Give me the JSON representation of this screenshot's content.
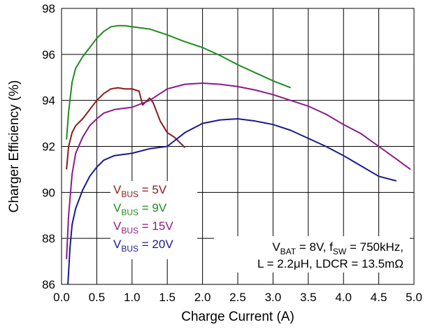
{
  "chart_data": {
    "type": "line",
    "title_visible": "",
    "xlabel": "Charge Current (A)",
    "ylabel": "Charger Efficiency (%)",
    "xlim": [
      0,
      5
    ],
    "ylim": [
      86,
      98
    ],
    "x_ticks": [
      "0.0",
      "0.5",
      "1.0",
      "1.5",
      "2.0",
      "2.5",
      "3.0",
      "3.5",
      "4.0",
      "4.5",
      "5.0"
    ],
    "y_ticks": [
      "86",
      "88",
      "90",
      "92",
      "94",
      "96",
      "98"
    ],
    "grid": true,
    "legend_position": "bottom-left",
    "series": [
      {
        "name_prefix": "V",
        "name_sub": "BUS",
        "name_suffix": " = 5V",
        "color": "#8b1a1a",
        "points": [
          [
            0.07,
            91.0
          ],
          [
            0.1,
            92.0
          ],
          [
            0.15,
            92.6
          ],
          [
            0.2,
            92.9
          ],
          [
            0.3,
            93.2
          ],
          [
            0.4,
            93.6
          ],
          [
            0.5,
            94.0
          ],
          [
            0.6,
            94.3
          ],
          [
            0.7,
            94.5
          ],
          [
            0.8,
            94.55
          ],
          [
            0.9,
            94.5
          ],
          [
            1.0,
            94.5
          ],
          [
            1.1,
            94.4
          ],
          [
            1.15,
            93.8
          ],
          [
            1.25,
            94.1
          ],
          [
            1.3,
            93.9
          ],
          [
            1.4,
            93.1
          ],
          [
            1.5,
            92.6
          ],
          [
            1.6,
            92.4
          ],
          [
            1.7,
            92.1
          ],
          [
            1.75,
            91.95
          ]
        ]
      },
      {
        "name_prefix": "V",
        "name_sub": "BUS",
        "name_suffix": " = 9V",
        "color": "#1e8c1e",
        "points": [
          [
            0.07,
            92.3
          ],
          [
            0.1,
            93.5
          ],
          [
            0.15,
            94.8
          ],
          [
            0.2,
            95.4
          ],
          [
            0.3,
            95.9
          ],
          [
            0.4,
            96.3
          ],
          [
            0.5,
            96.7
          ],
          [
            0.6,
            97.0
          ],
          [
            0.7,
            97.2
          ],
          [
            0.8,
            97.25
          ],
          [
            0.9,
            97.25
          ],
          [
            1.0,
            97.2
          ],
          [
            1.25,
            97.1
          ],
          [
            1.5,
            96.85
          ],
          [
            1.75,
            96.55
          ],
          [
            2.0,
            96.3
          ],
          [
            2.25,
            95.95
          ],
          [
            2.5,
            95.55
          ],
          [
            2.75,
            95.2
          ],
          [
            3.0,
            94.85
          ],
          [
            3.25,
            94.55
          ]
        ]
      },
      {
        "name_prefix": "V",
        "name_sub": "BUS",
        "name_suffix": " = 15V",
        "color": "#8b1a8b",
        "points": [
          [
            0.07,
            87.1
          ],
          [
            0.1,
            89.0
          ],
          [
            0.15,
            90.8
          ],
          [
            0.2,
            91.7
          ],
          [
            0.3,
            92.4
          ],
          [
            0.4,
            92.9
          ],
          [
            0.5,
            93.2
          ],
          [
            0.6,
            93.45
          ],
          [
            0.75,
            93.6
          ],
          [
            1.0,
            93.7
          ],
          [
            1.25,
            94.0
          ],
          [
            1.5,
            94.5
          ],
          [
            1.75,
            94.7
          ],
          [
            2.0,
            94.75
          ],
          [
            2.25,
            94.7
          ],
          [
            2.5,
            94.6
          ],
          [
            2.75,
            94.45
          ],
          [
            3.0,
            94.25
          ],
          [
            3.25,
            94.0
          ],
          [
            3.5,
            93.75
          ],
          [
            3.75,
            93.4
          ],
          [
            4.0,
            92.95
          ],
          [
            4.25,
            92.55
          ],
          [
            4.5,
            92.0
          ],
          [
            4.75,
            91.45
          ],
          [
            4.95,
            91.0
          ]
        ]
      },
      {
        "name_prefix": "V",
        "name_sub": "BUS",
        "name_suffix": " = 20V",
        "color": "#1a1a8b",
        "points": [
          [
            0.09,
            86.0
          ],
          [
            0.12,
            87.6
          ],
          [
            0.15,
            88.6
          ],
          [
            0.2,
            89.3
          ],
          [
            0.3,
            90.1
          ],
          [
            0.4,
            90.7
          ],
          [
            0.5,
            91.1
          ],
          [
            0.6,
            91.4
          ],
          [
            0.75,
            91.6
          ],
          [
            1.0,
            91.7
          ],
          [
            1.25,
            91.9
          ],
          [
            1.5,
            92.0
          ],
          [
            1.75,
            92.6
          ],
          [
            2.0,
            93.0
          ],
          [
            2.25,
            93.15
          ],
          [
            2.5,
            93.2
          ],
          [
            2.75,
            93.1
          ],
          [
            3.0,
            92.95
          ],
          [
            3.25,
            92.7
          ],
          [
            3.5,
            92.35
          ],
          [
            3.75,
            92.0
          ],
          [
            4.0,
            91.6
          ],
          [
            4.25,
            91.15
          ],
          [
            4.5,
            90.7
          ],
          [
            4.75,
            90.5
          ]
        ]
      }
    ],
    "annotation": {
      "line1": [
        {
          "t": "V",
          "sub": false
        },
        {
          "t": "BAT",
          "sub": true
        },
        {
          "t": " = 8V, f",
          "sub": false
        },
        {
          "t": "SW",
          "sub": true
        },
        {
          "t": " = 750kHz,",
          "sub": false
        }
      ],
      "line2": "L = 2.2μH, LDCR = 13.5mΩ"
    }
  }
}
